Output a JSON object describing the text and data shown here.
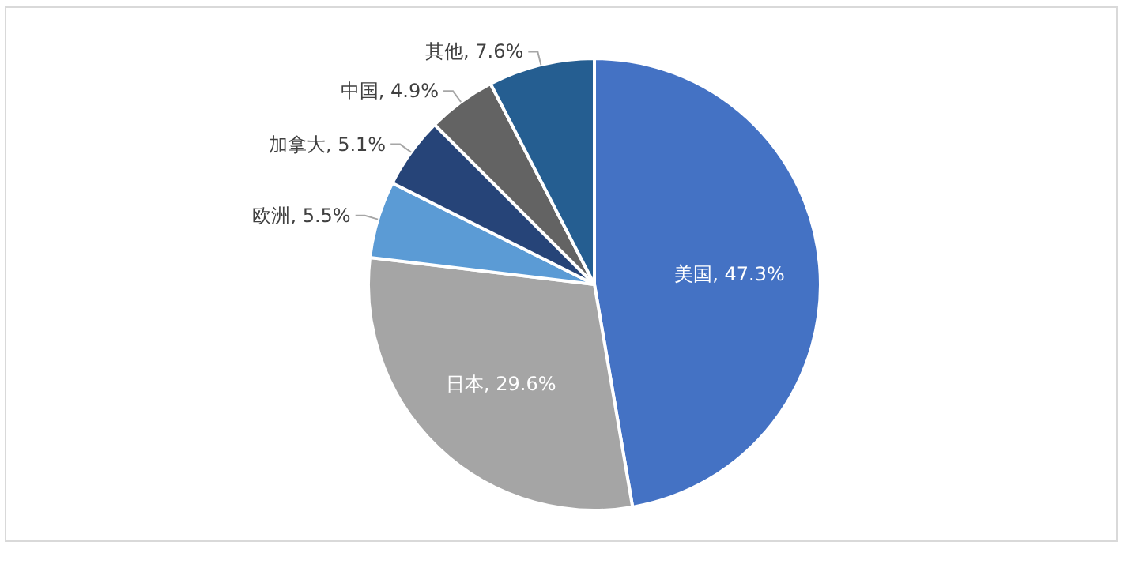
{
  "chart_data": {
    "type": "pie",
    "categories": [
      "美国",
      "日本",
      "欧洲",
      "加拿大",
      "中国",
      "其他"
    ],
    "values": [
      47.3,
      29.6,
      5.5,
      5.1,
      4.9,
      7.6
    ],
    "colors": [
      "#4472c4",
      "#a5a5a5",
      "#5b9bd5",
      "#264478",
      "#636363",
      "#255e91"
    ],
    "value_labels": [
      ", 47.3%",
      ", 29.6%",
      ", 5.5%",
      ", 5.1%",
      ", 4.9%",
      ", 7.6%"
    ]
  }
}
